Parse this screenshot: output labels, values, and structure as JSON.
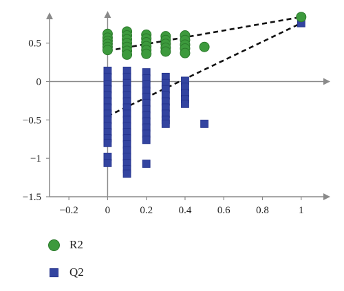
{
  "chart_data": {
    "type": "scatter",
    "title": "",
    "xlabel": "",
    "ylabel": "",
    "xlim": [
      -0.3,
      1.15
    ],
    "ylim": [
      -1.5,
      0.9
    ],
    "x_ticks": [
      -0.2,
      0,
      0.2,
      0.4,
      0.6,
      0.8,
      1
    ],
    "x_tick_labels": [
      "−0.2",
      "0",
      "0.2",
      "0.4",
      "0.6",
      "0.8",
      "1"
    ],
    "y_ticks": [
      0.5,
      0,
      -0.5,
      -1,
      -1.5
    ],
    "y_tick_labels": [
      "0.5",
      "0",
      "−0.5",
      "−1",
      "−1.5"
    ],
    "grid": false,
    "legend_position": "bottom-left",
    "series": [
      {
        "name": "R2",
        "marker": "circle",
        "color": "#3d9a3d",
        "points": [
          [
            0,
            0.62
          ],
          [
            0,
            0.57
          ],
          [
            0,
            0.53
          ],
          [
            0,
            0.49
          ],
          [
            0,
            0.45
          ],
          [
            0,
            0.41
          ],
          [
            0.1,
            0.65
          ],
          [
            0.1,
            0.6
          ],
          [
            0.1,
            0.55
          ],
          [
            0.1,
            0.5
          ],
          [
            0.1,
            0.45
          ],
          [
            0.1,
            0.4
          ],
          [
            0.1,
            0.35
          ],
          [
            0.2,
            0.61
          ],
          [
            0.2,
            0.56
          ],
          [
            0.2,
            0.51
          ],
          [
            0.2,
            0.46
          ],
          [
            0.2,
            0.41
          ],
          [
            0.2,
            0.36
          ],
          [
            0.3,
            0.59
          ],
          [
            0.3,
            0.54
          ],
          [
            0.3,
            0.49
          ],
          [
            0.3,
            0.44
          ],
          [
            0.3,
            0.39
          ],
          [
            0.4,
            0.6
          ],
          [
            0.4,
            0.54
          ],
          [
            0.4,
            0.48
          ],
          [
            0.4,
            0.43
          ],
          [
            0.4,
            0.37
          ],
          [
            0.5,
            0.45
          ],
          [
            1,
            0.84
          ]
        ],
        "trend_line": [
          [
            0,
            0.4
          ],
          [
            1,
            0.84
          ]
        ]
      },
      {
        "name": "Q2",
        "marker": "square",
        "color": "#3344a0",
        "points": [
          [
            0,
            -0.02
          ],
          [
            0,
            -0.1
          ],
          [
            0,
            -0.18
          ],
          [
            0,
            -0.26
          ],
          [
            0,
            -0.34
          ],
          [
            0,
            -0.42
          ],
          [
            0,
            -0.5
          ],
          [
            0,
            -0.58
          ],
          [
            0,
            -0.66
          ],
          [
            0,
            0.14
          ],
          [
            0,
            0.06
          ],
          [
            0,
            -0.74
          ],
          [
            0,
            -0.8
          ],
          [
            0,
            -0.98
          ],
          [
            0,
            -1.06
          ],
          [
            0.1,
            0.14
          ],
          [
            0.1,
            0.06
          ],
          [
            0.1,
            -0.02
          ],
          [
            0.1,
            -0.1
          ],
          [
            0.1,
            -0.18
          ],
          [
            0.1,
            -0.26
          ],
          [
            0.1,
            -0.34
          ],
          [
            0.1,
            -0.42
          ],
          [
            0.1,
            -0.5
          ],
          [
            0.1,
            -0.58
          ],
          [
            0.1,
            -0.66
          ],
          [
            0.1,
            -0.74
          ],
          [
            0.1,
            -0.82
          ],
          [
            0.1,
            -0.9
          ],
          [
            0.1,
            -0.98
          ],
          [
            0.1,
            -1.06
          ],
          [
            0.1,
            -1.14
          ],
          [
            0.1,
            -1.2
          ],
          [
            0.2,
            0.12
          ],
          [
            0.2,
            0.04
          ],
          [
            0.2,
            -0.04
          ],
          [
            0.2,
            -0.12
          ],
          [
            0.2,
            -0.2
          ],
          [
            0.2,
            -0.28
          ],
          [
            0.2,
            -0.36
          ],
          [
            0.2,
            -0.44
          ],
          [
            0.2,
            -0.52
          ],
          [
            0.2,
            -0.6
          ],
          [
            0.2,
            -0.68
          ],
          [
            0.2,
            -0.76
          ],
          [
            0.2,
            -1.07
          ],
          [
            0.3,
            0.06
          ],
          [
            0.3,
            -0.02
          ],
          [
            0.3,
            -0.1
          ],
          [
            0.3,
            -0.18
          ],
          [
            0.3,
            -0.26
          ],
          [
            0.3,
            -0.34
          ],
          [
            0.3,
            -0.42
          ],
          [
            0.3,
            -0.5
          ],
          [
            0.3,
            -0.55
          ],
          [
            0.4,
            0.01
          ],
          [
            0.4,
            -0.07
          ],
          [
            0.4,
            -0.15
          ],
          [
            0.4,
            -0.23
          ],
          [
            0.4,
            -0.29
          ],
          [
            0.5,
            -0.55
          ],
          [
            1,
            0.76
          ]
        ],
        "trend_line": [
          [
            0,
            -0.45
          ],
          [
            1,
            0.76
          ]
        ]
      }
    ]
  }
}
